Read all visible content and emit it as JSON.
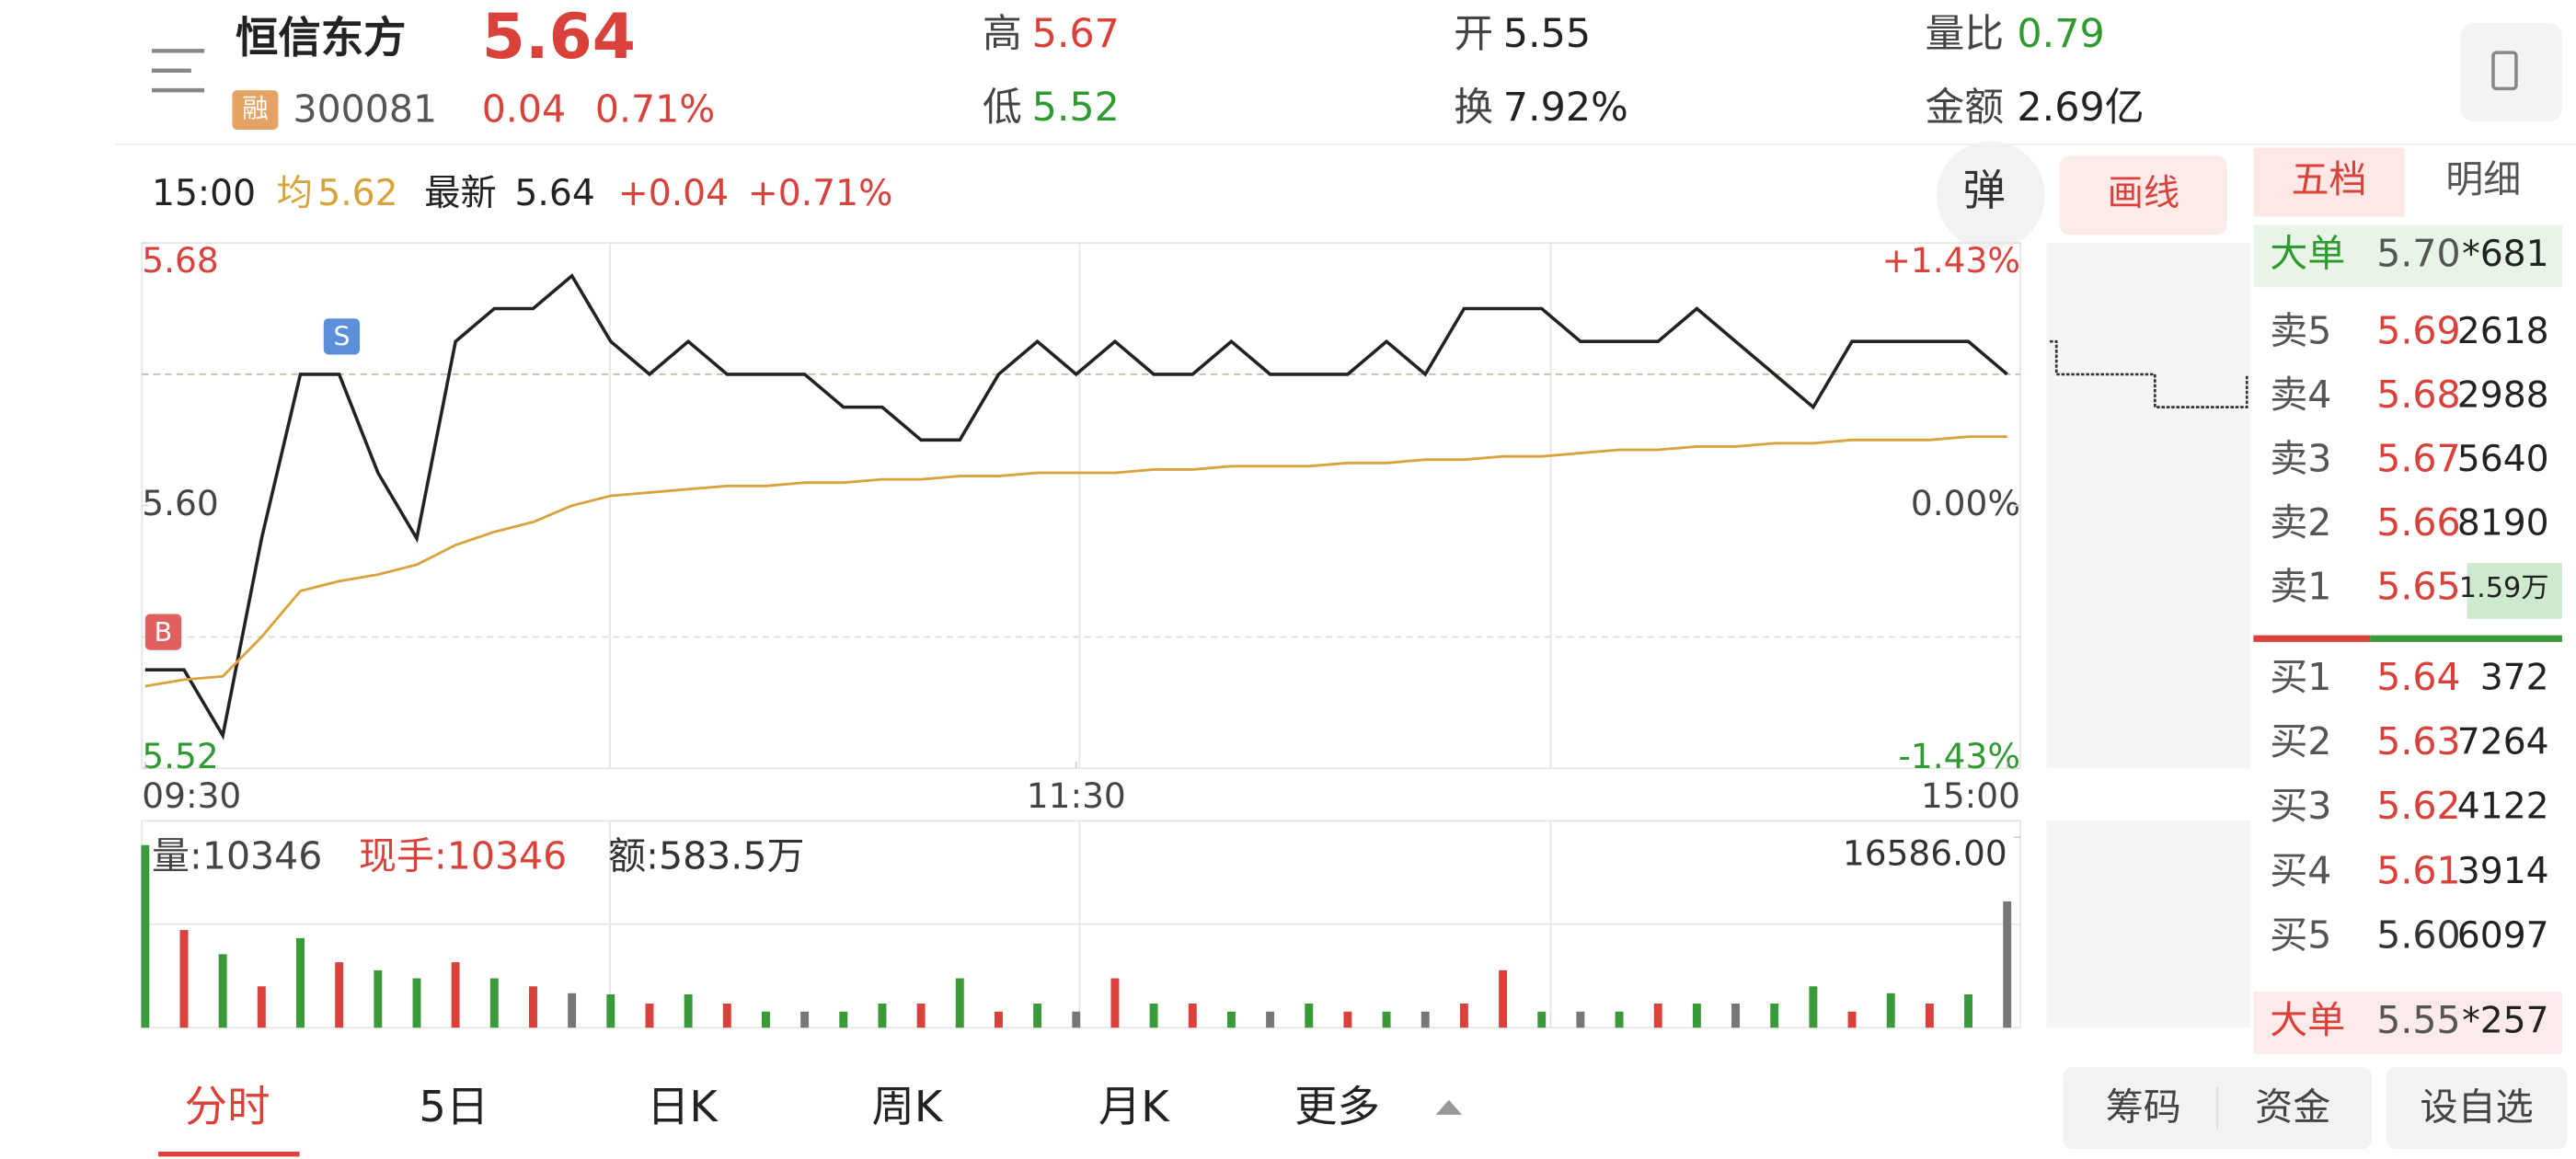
{
  "header": {
    "name": "恒信东方",
    "price": "5.64",
    "badge": "融",
    "code": "300081",
    "change": "0.04",
    "change_pct": "0.71%",
    "stats": [
      {
        "label": "高",
        "value": "5.67",
        "color": "#d9413a"
      },
      {
        "label": "低",
        "value": "5.52",
        "color": "#2f9a2f"
      },
      {
        "label": "开",
        "value": "5.55",
        "color": "#222"
      },
      {
        "label": "换",
        "value": "7.92%",
        "color": "#222"
      },
      {
        "label": "量比",
        "value": "0.79",
        "color": "#2f9a2f"
      },
      {
        "label": "金额",
        "value": "2.69亿",
        "color": "#222"
      }
    ]
  },
  "info_bar": {
    "time": "15:00",
    "avg_label": "均",
    "avg": "5.62",
    "latest_label": "最新",
    "latest": "5.64",
    "change": "+0.04",
    "change_pct": "+0.71%"
  },
  "buttons": {
    "danmu": "弹",
    "draw": "画线"
  },
  "chart_data": [
    {
      "type": "line",
      "x": [
        0,
        5,
        10,
        15,
        20,
        25,
        30,
        35,
        40,
        45,
        50,
        55,
        60,
        65,
        70,
        75,
        80,
        85,
        90,
        95,
        100,
        105,
        110,
        115,
        120,
        125,
        130,
        135,
        140,
        145,
        150,
        155,
        160,
        165,
        170,
        175,
        180,
        185,
        190,
        195,
        200,
        205,
        210,
        215,
        220,
        225,
        230,
        235,
        240
      ],
      "xlim": [
        0,
        240
      ],
      "xticks": [
        {
          "value": 0,
          "label": "09:30"
        },
        {
          "value": 120,
          "label": "11:30"
        },
        {
          "value": 240,
          "label": "15:00"
        }
      ],
      "ylim": [
        5.52,
        5.68
      ],
      "yticks": [
        {
          "value": 5.52,
          "label": "5.52"
        },
        {
          "value": 5.6,
          "label": "5.60"
        },
        {
          "value": 5.68,
          "label": "5.68"
        }
      ],
      "y2lim": [
        -1.43,
        1.43
      ],
      "y2ticks": [
        {
          "value": -1.43,
          "label": "-1.43%"
        },
        {
          "value": 0,
          "label": "0.00%"
        },
        {
          "value": 1.43,
          "label": "+1.43%"
        }
      ],
      "series": [
        {
          "color": "#222222",
          "values": [
            5.55,
            5.55,
            5.53,
            5.59,
            5.64,
            5.64,
            5.61,
            5.59,
            5.65,
            5.66,
            5.66,
            5.67,
            5.65,
            5.64,
            5.65,
            5.64,
            5.64,
            5.64,
            5.63,
            5.63,
            5.62,
            5.62,
            5.64,
            5.65,
            5.64,
            5.65,
            5.64,
            5.64,
            5.65,
            5.64,
            5.64,
            5.64,
            5.65,
            5.64,
            5.66,
            5.66,
            5.66,
            5.65,
            5.65,
            5.65,
            5.66,
            5.65,
            5.64,
            5.63,
            5.65,
            5.65,
            5.65,
            5.65,
            5.64
          ]
        },
        {
          "color": "#d9a23a",
          "values": [
            5.545,
            5.547,
            5.548,
            5.56,
            5.574,
            5.577,
            5.579,
            5.582,
            5.588,
            5.592,
            5.595,
            5.6,
            5.603,
            5.604,
            5.605,
            5.606,
            5.606,
            5.607,
            5.607,
            5.608,
            5.608,
            5.609,
            5.609,
            5.61,
            5.61,
            5.61,
            5.611,
            5.611,
            5.612,
            5.612,
            5.612,
            5.613,
            5.613,
            5.614,
            5.614,
            5.615,
            5.615,
            5.616,
            5.617,
            5.617,
            5.618,
            5.618,
            5.619,
            5.619,
            5.62,
            5.62,
            5.62,
            5.621,
            5.621
          ]
        }
      ],
      "annotations": [
        {
          "text": "B",
          "x": 0,
          "y": 5.555,
          "color": "#e06060"
        },
        {
          "text": "S",
          "x": 23,
          "y": 5.645,
          "color": "#5b8fd9"
        }
      ]
    },
    {
      "type": "bar",
      "x": [
        0,
        5,
        10,
        15,
        20,
        25,
        30,
        35,
        40,
        45,
        50,
        55,
        60,
        65,
        70,
        75,
        80,
        85,
        90,
        95,
        100,
        105,
        110,
        115,
        120,
        125,
        130,
        135,
        140,
        145,
        150,
        155,
        160,
        165,
        170,
        175,
        180,
        185,
        190,
        195,
        200,
        205,
        210,
        215,
        220,
        225,
        230,
        235,
        240
      ],
      "xlim": [
        0,
        240
      ],
      "ylim": [
        0,
        16586
      ],
      "yticks": [
        {
          "value": 16586,
          "label": "16586.00"
        }
      ],
      "labels": {
        "volume": "量:10346",
        "current": "现手:10346",
        "amount": "额:583.5万"
      },
      "values": [
        15900,
        8500,
        6400,
        3600,
        7800,
        5700,
        5000,
        4300,
        5700,
        4300,
        3600,
        3000,
        2900,
        2100,
        2900,
        2100,
        1400,
        1400,
        1400,
        2100,
        2100,
        4300,
        1400,
        2100,
        1400,
        4300,
        2100,
        2100,
        1400,
        1400,
        2100,
        1400,
        1400,
        1400,
        2100,
        5000,
        1400,
        1400,
        1400,
        2100,
        2100,
        2100,
        2100,
        3600,
        1400,
        3000,
        2100,
        2900,
        11000
      ],
      "colors": [
        "#3a9a3a",
        "#d9413a",
        "#3a9a3a",
        "#d9413a",
        "#3a9a3a",
        "#d9413a",
        "#3a9a3a",
        "#3a9a3a",
        "#d9413a",
        "#3a9a3a",
        "#d9413a",
        "#777777",
        "#3a9a3a",
        "#d9413a",
        "#3a9a3a",
        "#d9413a",
        "#3a9a3a",
        "#777777",
        "#3a9a3a",
        "#3a9a3a",
        "#d9413a",
        "#3a9a3a",
        "#d9413a",
        "#3a9a3a",
        "#777777",
        "#d9413a",
        "#3a9a3a",
        "#d9413a",
        "#3a9a3a",
        "#777777",
        "#3a9a3a",
        "#d9413a",
        "#3a9a3a",
        "#777777",
        "#d9413a",
        "#d9413a",
        "#3a9a3a",
        "#777777",
        "#3a9a3a",
        "#d9413a",
        "#3a9a3a",
        "#777777",
        "#3a9a3a",
        "#3a9a3a",
        "#d9413a",
        "#3a9a3a",
        "#d9413a",
        "#3a9a3a",
        "#777777"
      ]
    }
  ],
  "order_book": {
    "tabs": [
      "五档",
      "明细"
    ],
    "big_sell": {
      "label": "大单",
      "price": "5.70",
      "volume": "*681"
    },
    "asks": [
      {
        "label": "卖5",
        "price": "5.69",
        "volume": "2618",
        "color": "#d9413a"
      },
      {
        "label": "卖4",
        "price": "5.68",
        "volume": "2988",
        "color": "#d9413a"
      },
      {
        "label": "卖3",
        "price": "5.67",
        "volume": "5640",
        "color": "#d9413a"
      },
      {
        "label": "卖2",
        "price": "5.66",
        "volume": "8190",
        "color": "#d9413a"
      },
      {
        "label": "卖1",
        "price": "5.65",
        "volume": "1.59万",
        "color": "#d9413a"
      }
    ],
    "bids": [
      {
        "label": "买1",
        "price": "5.64",
        "volume": "372",
        "color": "#d9413a"
      },
      {
        "label": "买2",
        "price": "5.63",
        "volume": "7264",
        "color": "#d9413a"
      },
      {
        "label": "买3",
        "price": "5.62",
        "volume": "4122",
        "color": "#d9413a"
      },
      {
        "label": "买4",
        "price": "5.61",
        "volume": "3914",
        "color": "#d9413a"
      },
      {
        "label": "买5",
        "price": "5.60",
        "volume": "6097",
        "color": "#333333"
      }
    ],
    "big_buy": {
      "label": "大单",
      "price": "5.55",
      "volume": "*257"
    }
  },
  "bottom_tabs": [
    "分时",
    "5日",
    "日K",
    "周K",
    "月K",
    "更多"
  ],
  "bottom_buttons": [
    "筹码",
    "资金",
    "设自选"
  ]
}
